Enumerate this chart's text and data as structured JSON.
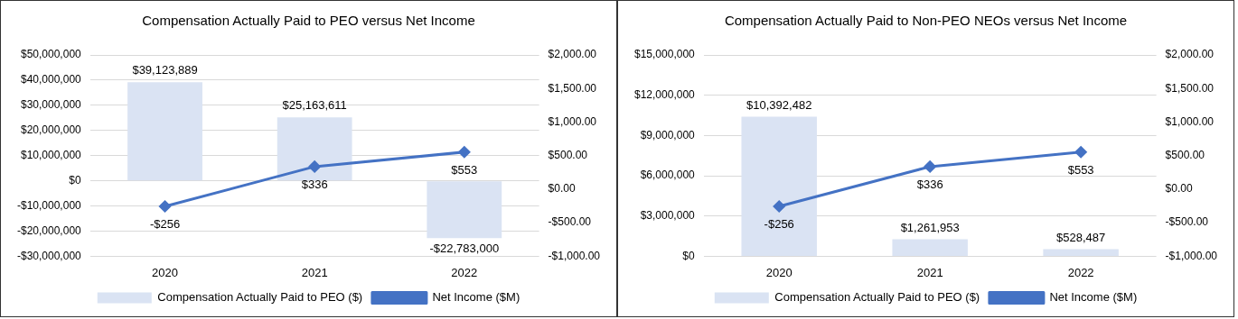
{
  "chart_data": [
    {
      "type": "bar",
      "title": "Compensation Actually Paid to PEO versus Net Income",
      "categories": [
        "2020",
        "2021",
        "2022"
      ],
      "series": [
        {
          "name": "Compensation Actually Paid to PEO ($)",
          "type": "bar",
          "color": "#dae3f3",
          "values": [
            39123889,
            25163611,
            -22783000
          ],
          "value_labels": [
            "$39,123,889",
            "$25,163,611",
            "-$22,783,000"
          ]
        },
        {
          "name": "Net Income ($M)",
          "type": "line",
          "axis": "y2",
          "color": "#4472c4",
          "values": [
            -256,
            336,
            553
          ],
          "value_labels": [
            "-$256",
            "$336",
            "$553"
          ]
        }
      ],
      "ylim": [
        -30000000,
        50000000
      ],
      "yticks": [
        {
          "value": -30000000,
          "label": "-$30,000,000"
        },
        {
          "value": -20000000,
          "label": "-$20,000,000"
        },
        {
          "value": -10000000,
          "label": "-$10,000,000"
        },
        {
          "value": 0,
          "label": "$0"
        },
        {
          "value": 10000000,
          "label": "$10,000,000"
        },
        {
          "value": 20000000,
          "label": "$20,000,000"
        },
        {
          "value": 30000000,
          "label": "$30,000,000"
        },
        {
          "value": 40000000,
          "label": "$40,000,000"
        },
        {
          "value": 50000000,
          "label": "$50,000,000"
        }
      ],
      "y2lim": [
        -1000,
        2000
      ],
      "y2ticks": [
        {
          "value": -1000,
          "label": "-$1,000.00"
        },
        {
          "value": -500,
          "label": "-$500.00"
        },
        {
          "value": 0,
          "label": "$0.00"
        },
        {
          "value": 500,
          "label": "$500.00"
        },
        {
          "value": 1000,
          "label": "$1,000.00"
        },
        {
          "value": 1500,
          "label": "$1,500.00"
        },
        {
          "value": 2000,
          "label": "$2,000.00"
        }
      ],
      "grid": "y",
      "legend": "bottom",
      "marker": "diamond"
    },
    {
      "type": "bar",
      "title": "Compensation Actually Paid to Non-PEO NEOs versus Net Income",
      "categories": [
        "2020",
        "2021",
        "2022"
      ],
      "series": [
        {
          "name": "Compensation Actually Paid to PEO ($)",
          "type": "bar",
          "color": "#dae3f3",
          "values": [
            10392482,
            1261953,
            528487
          ],
          "value_labels": [
            "$10,392,482",
            "$1,261,953",
            "$528,487"
          ]
        },
        {
          "name": "Net Income ($M)",
          "type": "line",
          "axis": "y2",
          "color": "#4472c4",
          "values": [
            -256,
            336,
            553
          ],
          "value_labels": [
            "-$256",
            "$336",
            "$553"
          ]
        }
      ],
      "ylim": [
        0,
        15000000
      ],
      "yticks": [
        {
          "value": 0,
          "label": "$0"
        },
        {
          "value": 3000000,
          "label": "$3,000,000"
        },
        {
          "value": 6000000,
          "label": "$6,000,000"
        },
        {
          "value": 9000000,
          "label": "$9,000,000"
        },
        {
          "value": 12000000,
          "label": "$12,000,000"
        },
        {
          "value": 15000000,
          "label": "$15,000,000"
        }
      ],
      "y2lim": [
        -1000,
        2000
      ],
      "y2ticks": [
        {
          "value": -1000,
          "label": "-$1,000.00"
        },
        {
          "value": -500,
          "label": "-$500.00"
        },
        {
          "value": 0,
          "label": "$0.00"
        },
        {
          "value": 500,
          "label": "$500.00"
        },
        {
          "value": 1000,
          "label": "$1,000.00"
        },
        {
          "value": 1500,
          "label": "$1,500.00"
        },
        {
          "value": 2000,
          "label": "$2,000.00"
        }
      ],
      "grid": "y",
      "legend": "bottom",
      "marker": "diamond"
    }
  ]
}
